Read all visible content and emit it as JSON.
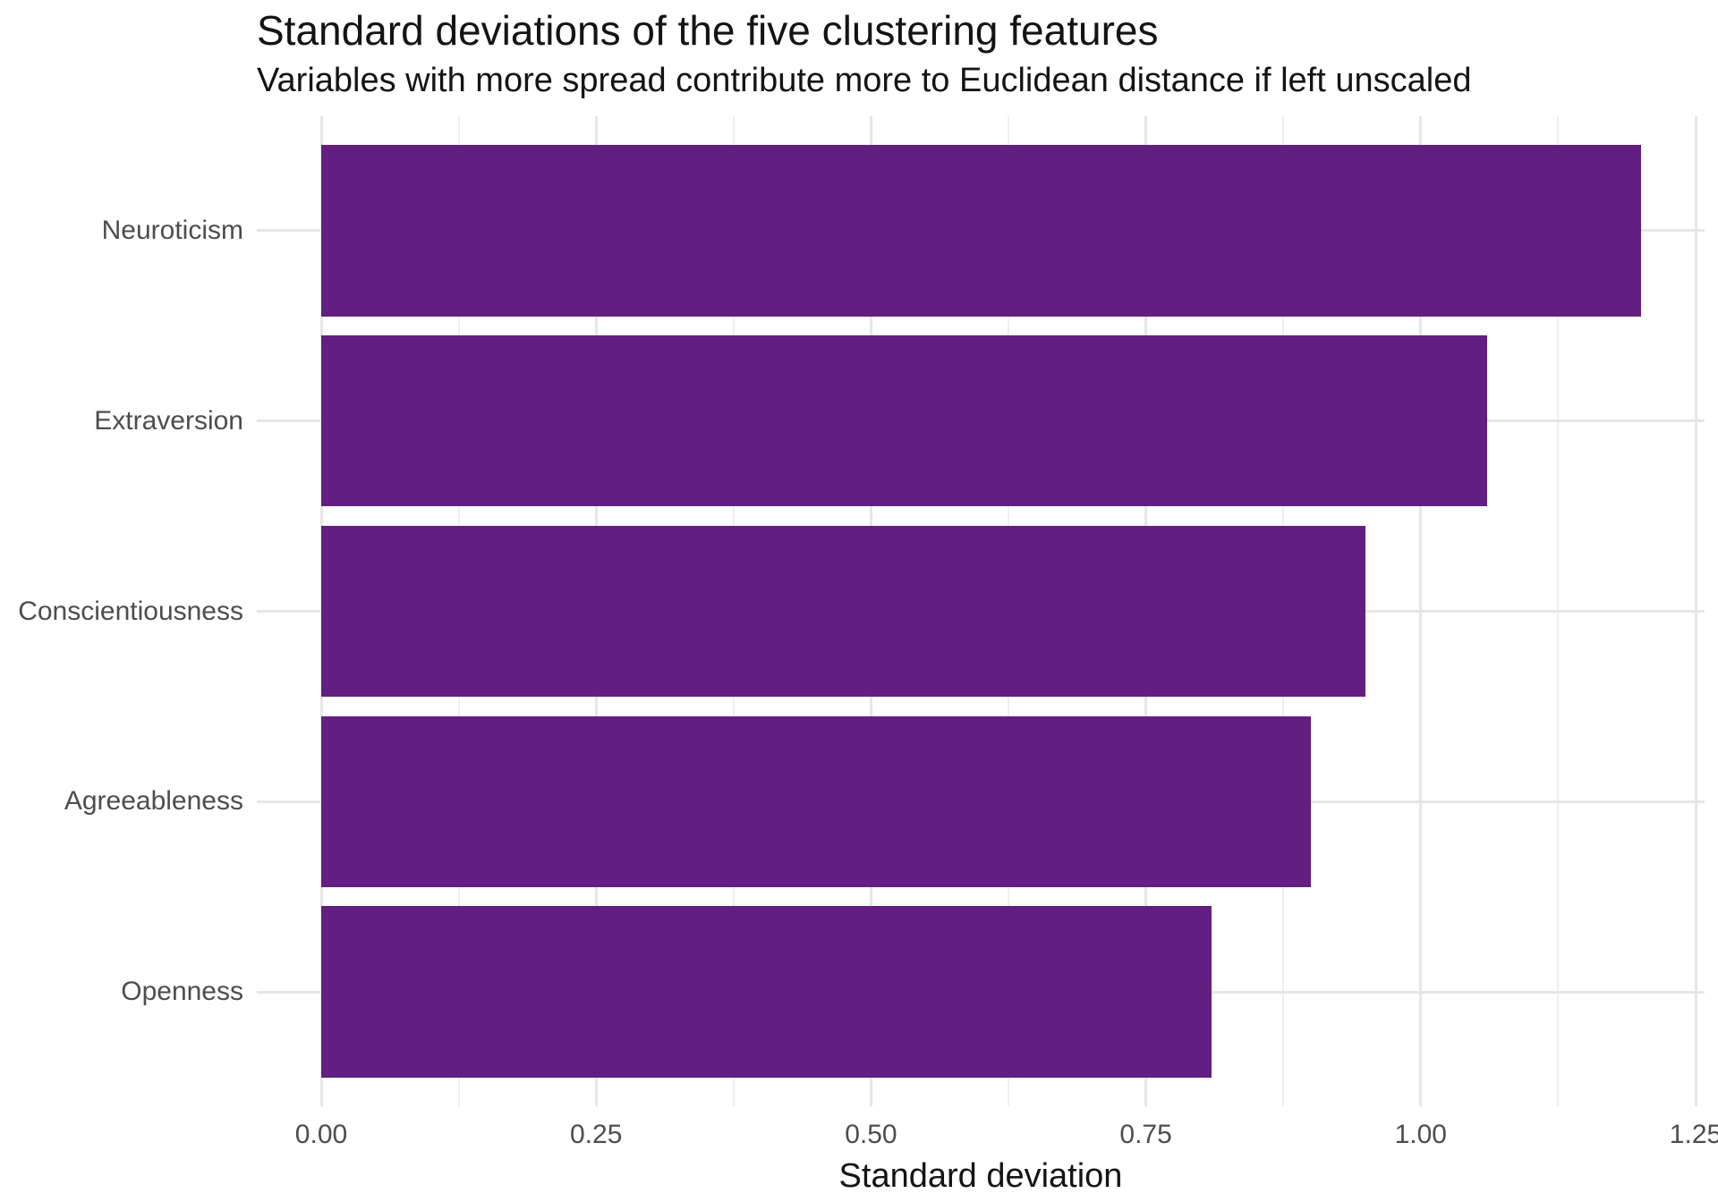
{
  "chart_data": {
    "type": "bar",
    "orientation": "horizontal",
    "title": "Standard deviations of the five clustering features",
    "subtitle": "Variables with more spread contribute more to Euclidean distance if left unscaled",
    "xlabel": "Standard deviation",
    "ylabel": "",
    "categories": [
      "Neuroticism",
      "Extraversion",
      "Conscientiousness",
      "Agreeableness",
      "Openness"
    ],
    "values": [
      1.2,
      1.06,
      0.95,
      0.9,
      0.81
    ],
    "xlim": [
      0,
      1.25
    ],
    "x_ticks": {
      "values": [
        0,
        0.25,
        0.5,
        0.75,
        1.0,
        1.25
      ],
      "labels": [
        "0.00",
        "0.25",
        "0.50",
        "0.75",
        "1.00",
        "1.25"
      ]
    },
    "grid": {
      "vertical_major": true,
      "vertical_minor": true,
      "horizontal_major": true,
      "horizontal_minor": false
    },
    "legend": "none",
    "colors": {
      "bar": "#631e82",
      "grid_major": "#e6e6e6",
      "grid_minor": "#efefef",
      "axis_text": "#4d4d4d",
      "title_text": "#141414",
      "background": "#ffffff"
    }
  }
}
